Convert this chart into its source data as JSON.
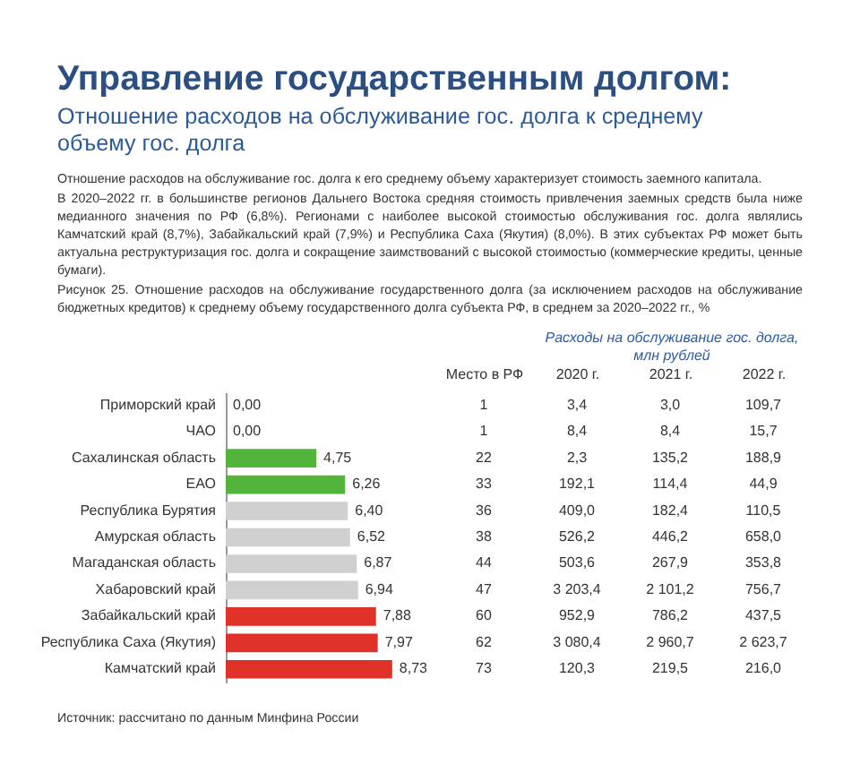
{
  "chart_data": [
    {
      "type": "bar",
      "orientation": "horizontal",
      "title": "Управление государственным долгом:",
      "subtitle": "Отношение расходов на обслуживание гос. долга к среднему объему гос. долга",
      "annotations": [
        "Отношение расходов на обслуживание гос. долга к его среднему объему характеризует стоимость заемного капитала.",
        "В 2020–2022 гг. в большинстве регионов Дальнего Востока средняя стоимость привлечения заемных средств была ниже медианного значения по РФ (6,8%). Регионами с наиболее высокой стоимостью обслуживания гос. долга являлись Камчатский край (8,7%), Забайкальский край (7,9%) и Республика Саха (Якутия) (8,0%). В этих субъектах РФ может быть актуальна реструктуризация гос. долга и сокращение заимствований с высокой стоимостью (коммерческие кредиты, ценные бумаги).",
        "Рисунок 25. Отношение расходов на обслуживание государственного долга (за исключением расходов на обслуживание бюджетных кредитов) к среднему объему государственного долга субъекта РФ, в среднем за 2020–2022 гг., %",
        "Источник: рассчитано по данным Минфина России"
      ],
      "categories": [
        "Приморский край",
        "ЧАО",
        "Сахалинская область",
        "ЕАО",
        "Республика Бурятия",
        "Амурская область",
        "Магаданская область",
        "Хабаровский край",
        "Забайкальский край",
        "Республика Саха (Якутия)",
        "Камчатский край"
      ],
      "values": [
        0,
        0,
        4.75,
        6.26,
        6.4,
        6.52,
        6.87,
        6.94,
        7.88,
        7.97,
        8.73
      ],
      "value_labels": [
        "0,00",
        "0,00",
        "4,75",
        "6,26",
        "6,40",
        "6,52",
        "6,87",
        "6,94",
        "7,88",
        "7,97",
        "8,73"
      ],
      "colors": [
        "#d0d0d0",
        "#d0d0d0",
        "#52b43a",
        "#52b43a",
        "#d0d0d0",
        "#d0d0d0",
        "#d0d0d0",
        "#d0d0d0",
        "#e03128",
        "#e03128",
        "#e03128"
      ]
    },
    {
      "type": "other",
      "title": "Расходы на обслуживание гос. долга, млн рублей",
      "categories": [
        "Место в РФ",
        "2020 г.",
        "2021 г.",
        "2022 г."
      ],
      "cell_labels": [
        [
          "1",
          "3,4",
          "3,0",
          "109,7"
        ],
        [
          "1",
          "8,4",
          "8,4",
          "15,7"
        ],
        [
          "22",
          "2,3",
          "135,2",
          "188,9"
        ],
        [
          "33",
          "192,1",
          "114,4",
          "44,9"
        ],
        [
          "36",
          "409,0",
          "182,4",
          "110,5"
        ],
        [
          "38",
          "526,2",
          "446,2",
          "658,0"
        ],
        [
          "44",
          "503,6",
          "267,9",
          "353,8"
        ],
        [
          "47",
          "3 203,4",
          "2 101,2",
          "756,7"
        ],
        [
          "60",
          "952,9",
          "786,2",
          "437,5"
        ],
        [
          "62",
          "3 080,4",
          "2 960,7",
          "2 623,7"
        ],
        [
          "73",
          "120,3",
          "219,5",
          "216,0"
        ]
      ]
    }
  ]
}
